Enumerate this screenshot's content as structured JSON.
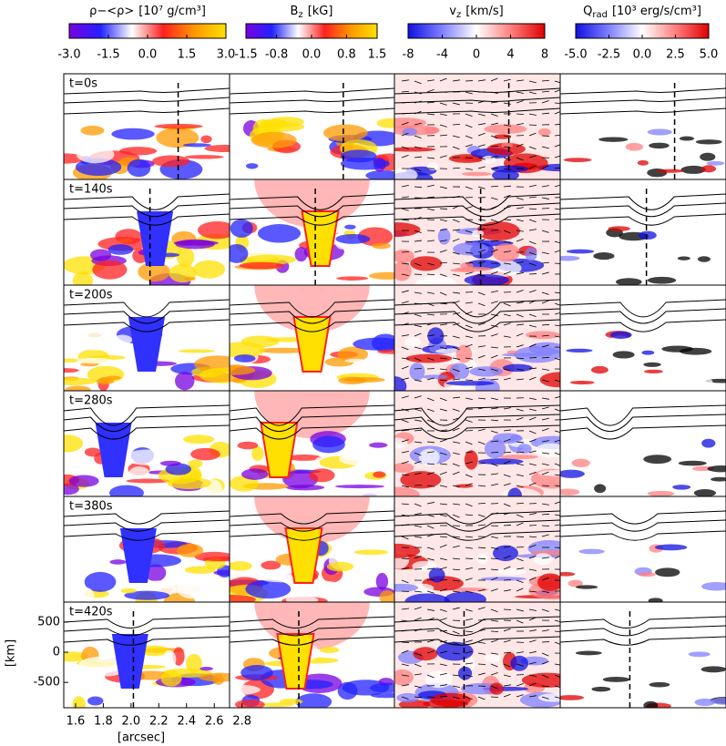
{
  "chart_data": [
    {
      "type": "colorbar",
      "symbol": "ρ−<ρ>",
      "unit": "[10⁷ g/cm³]",
      "colors": [
        "#7a00e0",
        "#2222ff",
        "#ffffff",
        "#ff2020",
        "#ff9900",
        "#ffe000"
      ],
      "xlim": [
        -3,
        3
      ],
      "xticks": [
        {
          "value": -3,
          "label": "-3.0"
        },
        {
          "value": -1.5,
          "label": "-1.5"
        },
        {
          "value": 0,
          "label": "0.0"
        },
        1.5,
        {
          "value": 3,
          "label": "3.0"
        }
      ]
    },
    {
      "type": "colorbar",
      "symbol": "B",
      "subscript": "z",
      "unit": "[kG]",
      "colors": [
        "#7a00e0",
        "#2222ff",
        "#ffffff",
        "#ff2020",
        "#ff9900",
        "#ffe000"
      ],
      "xlim": [
        -1.5,
        1.5
      ],
      "xticks": [
        -1.5,
        -0.8,
        {
          "value": 0,
          "label": "0.0"
        },
        0.8,
        1.5
      ]
    },
    {
      "type": "colorbar",
      "symbol": "v",
      "subscript": "z",
      "unit": "[km/s]",
      "colors": [
        "#1010e0",
        "#8080ff",
        "#ffffff",
        "#ff8080",
        "#e00000"
      ],
      "xlim": [
        -8,
        8
      ],
      "xticks": [
        -8,
        -4,
        0,
        4,
        8
      ]
    },
    {
      "type": "colorbar",
      "symbol": "Q",
      "subscript": "rad",
      "unit": "[10³ erg/s/cm³]",
      "colors": [
        "#1010e0",
        "#8080ff",
        "#ffffff",
        "#ff8080",
        "#e00000"
      ],
      "xlim": [
        -5,
        5
      ],
      "xticks": [
        {
          "value": -5,
          "label": "-5.0"
        },
        -2.5,
        {
          "value": 0,
          "label": "0.0"
        },
        2.5,
        {
          "value": 5,
          "label": "5.0"
        }
      ]
    },
    {
      "type": "panel-grid",
      "times": [
        "t=0s",
        "t=140s",
        "t=200s",
        "t=280s",
        "t=380s",
        "t=420s"
      ],
      "xlabel": "[arcsec]",
      "ylabel": "[km]",
      "xlim": [
        1.515,
        2.71
      ],
      "ylim": [
        -920,
        830
      ],
      "xticks": [
        1.6,
        1.8,
        {
          "value": 2,
          "label": "2.0"
        },
        2.2,
        2.4,
        2.6,
        2.8
      ],
      "yticks": [
        500,
        0,
        -500
      ]
    }
  ]
}
